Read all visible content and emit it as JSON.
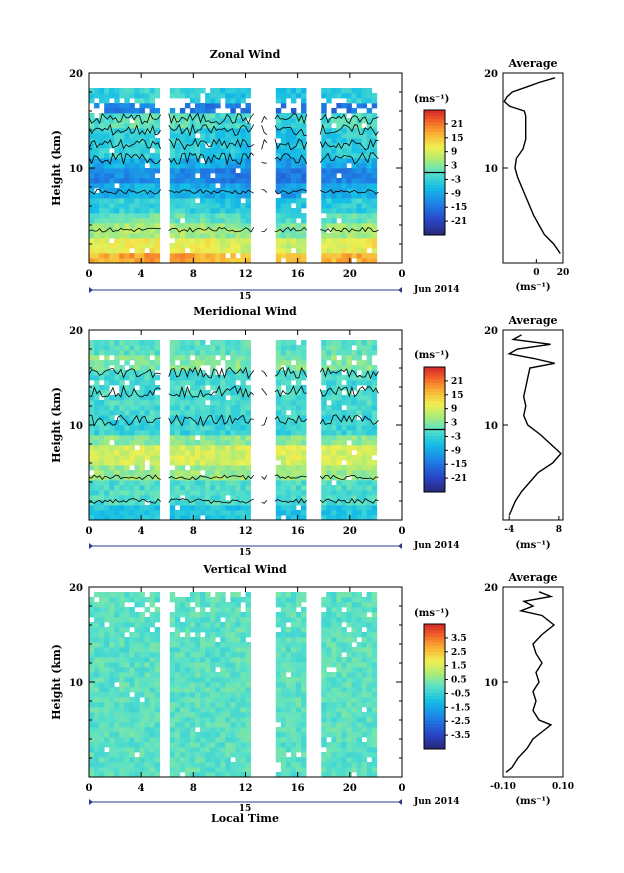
{
  "common": {
    "date_label": "Jun 2014",
    "day_label": "15",
    "x_ticks": [
      "0",
      "4",
      "8",
      "12",
      "16",
      "20",
      "0"
    ],
    "y_ticks": [
      "20",
      "10"
    ],
    "ylabel": "Height (km)",
    "avg_title": "Average",
    "unit": "(ms⁻¹)",
    "xlabel": "Local Time"
  },
  "chart_data": [
    {
      "type": "heatmap",
      "title": "Zonal Wind",
      "xlabel": "",
      "ylabel": "Height (km)",
      "x_range_hours": [
        0,
        24
      ],
      "ylim": [
        0,
        20
      ],
      "colorbar": {
        "unit": "(ms⁻¹)",
        "ticks": [
          "21",
          "15",
          "9",
          "3",
          "-3",
          "-9",
          "-15",
          "-21"
        ],
        "range": [
          -24,
          24
        ]
      },
      "average_profile": {
        "title": "Average",
        "xlabel": "(ms⁻¹)",
        "x_ticks": [
          "0",
          "20"
        ],
        "xlim": [
          -25,
          20
        ],
        "height": [
          1,
          2,
          3,
          4,
          5,
          6,
          7,
          8,
          9,
          10,
          11,
          12,
          13,
          14,
          14.5,
          15,
          15.5,
          16,
          16.5,
          17,
          17.5,
          18,
          18.5,
          19,
          19.5
        ],
        "values": [
          18,
          13,
          6,
          2,
          -2,
          -5,
          -8,
          -11,
          -14,
          -16,
          -15,
          -10,
          -8,
          -8,
          -8,
          -8,
          -8,
          -9,
          -20,
          -24,
          -22,
          -18,
          -8,
          2,
          14
        ]
      }
    },
    {
      "type": "heatmap",
      "title": "Meridional Wind",
      "xlabel": "",
      "ylabel": "Height (km)",
      "x_range_hours": [
        0,
        24
      ],
      "ylim": [
        0,
        20
      ],
      "colorbar": {
        "unit": "(ms⁻¹)",
        "ticks": [
          "21",
          "15",
          "9",
          "3",
          "-3",
          "-9",
          "-15",
          "-21"
        ],
        "range": [
          -24,
          24
        ]
      },
      "average_profile": {
        "title": "Average",
        "xlabel": "(ms⁻¹)",
        "x_ticks": [
          "-4",
          "8"
        ],
        "xlim": [
          -5.5,
          9
        ],
        "height": [
          0.5,
          1,
          2,
          3,
          4,
          5,
          6,
          7,
          8,
          9,
          10,
          11,
          12,
          13,
          14,
          15,
          16,
          16.5,
          17,
          17.5,
          18,
          18.5,
          19,
          19.5
        ],
        "values": [
          -4,
          -3.5,
          -2.5,
          -1,
          1,
          3,
          6.5,
          8.5,
          6,
          3.5,
          0.5,
          -0.5,
          0,
          -0.5,
          0,
          0.5,
          1,
          7,
          2,
          -4,
          -2,
          6,
          -3,
          -1
        ]
      }
    },
    {
      "type": "heatmap",
      "title": "Vertical Wind",
      "xlabel": "Local Time",
      "ylabel": "Height (km)",
      "x_range_hours": [
        0,
        24
      ],
      "ylim": [
        0,
        20
      ],
      "colorbar": {
        "unit": "(ms⁻¹)",
        "ticks": [
          "3.5",
          "2.5",
          "1.5",
          "0.5",
          "-0.5",
          "-1.5",
          "-2.5",
          "-3.5"
        ],
        "range": [
          -4,
          4
        ]
      },
      "average_profile": {
        "title": "Average",
        "xlabel": "(ms⁻¹)",
        "x_ticks": [
          "-0.10",
          "0.10"
        ],
        "xlim": [
          -0.1,
          0.1
        ],
        "height": [
          0.5,
          1,
          2,
          3,
          4,
          5,
          5.5,
          6,
          7,
          8,
          9,
          10,
          11,
          12,
          13,
          14,
          15,
          16,
          17,
          17.5,
          18,
          18.5,
          19,
          19.5
        ],
        "values": [
          -0.09,
          -0.07,
          -0.05,
          -0.02,
          0.0,
          0.04,
          0.06,
          0.02,
          0.0,
          0.01,
          0.0,
          0.02,
          0.01,
          0.03,
          0.01,
          0.0,
          0.03,
          0.07,
          0.03,
          -0.04,
          0.0,
          -0.03,
          0.06,
          0.02
        ]
      }
    }
  ]
}
